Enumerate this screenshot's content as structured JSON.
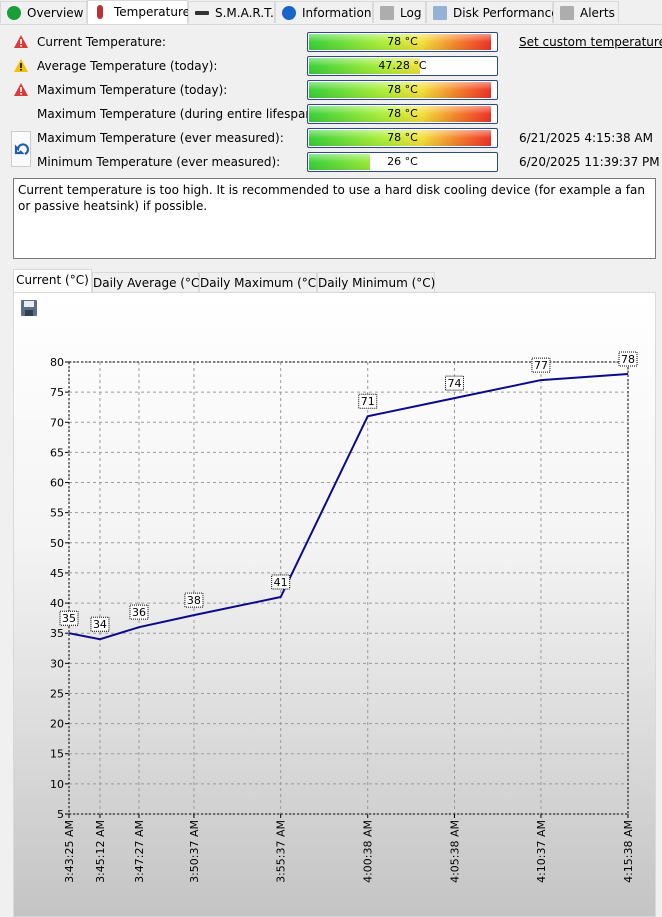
{
  "tabs": [
    "Overview",
    "Temperature",
    "S.M.A.R.T.",
    "Information",
    "Log",
    "Disk Performance",
    "Alerts"
  ],
  "rows": [
    {
      "label": "Current Temperature:",
      "value": 78,
      "value_label": "78 °C"
    },
    {
      "label": "Average Temperature (today):",
      "value": 47.28,
      "value_label": "47.28 °C"
    },
    {
      "label": "Maximum Temperature (today):",
      "value": 78,
      "value_label": "78 °C"
    },
    {
      "label": "Maximum Temperature (during entire lifespan):",
      "value": 78,
      "value_label": "78 °C"
    },
    {
      "label": "Maximum Temperature (ever measured):",
      "value": 78,
      "value_label": "78 °C",
      "date": "6/21/2025 4:15:38 AM"
    },
    {
      "label": "Minimum Temperature (ever measured):",
      "value": 26,
      "value_label": "26 °C",
      "date": "6/20/2025 11:39:37 PM"
    }
  ],
  "gauge_xlim": [
    0,
    80
  ],
  "link": "Set custom temperature thr",
  "message": "Current temperature is too high. It is recommended to use a hard disk cooling device (for example a fan or passive heatsink) if possible.",
  "chart_tabs": [
    "Current (°C)",
    "Daily Average (°C)",
    "Daily Maximum (°C)",
    "Daily Minimum (°C)"
  ],
  "chart_data": {
    "type": "line",
    "x": [
      "3:43:25 AM",
      "3:45:12 AM",
      "3:47:27 AM",
      "3:50:37 AM",
      "3:55:37 AM",
      "4:00:38 AM",
      "4:05:38 AM",
      "4:10:37 AM",
      "4:15:38 AM"
    ],
    "series": [
      {
        "name": "Current",
        "color": "#0a0a8c",
        "values": [
          35,
          34,
          36,
          38,
          41,
          71,
          74,
          77,
          78
        ]
      }
    ],
    "ylim": [
      5,
      80
    ],
    "yticks": [
      5,
      10,
      15,
      20,
      25,
      30,
      35,
      40,
      45,
      50,
      55,
      60,
      65,
      70,
      75,
      80
    ],
    "grid": true
  }
}
